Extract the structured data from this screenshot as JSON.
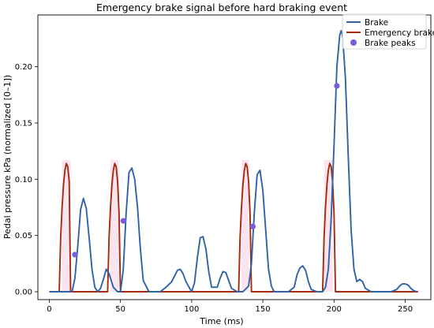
{
  "chart_data": {
    "type": "line",
    "title": "Emergency brake signal before hard braking event",
    "xlabel": "Time (ms)",
    "ylabel": "Pedal pressure kPa (normalized [0–1])",
    "xlim": [
      -8,
      268
    ],
    "ylim": [
      -0.007,
      0.246
    ],
    "xticks": [
      0,
      50,
      100,
      150,
      200,
      250
    ],
    "yticks": [
      0.0,
      0.05,
      0.1,
      0.15,
      0.2
    ],
    "ytick_labels": [
      "0.00",
      "0.05",
      "0.10",
      "0.15",
      "0.20"
    ],
    "grid": false,
    "legend_position": "top-right",
    "series": [
      {
        "name": "Brake",
        "color": "#2f62a8",
        "x": [
          0,
          16,
          18,
          20,
          22,
          24,
          26,
          28,
          30,
          32,
          34,
          36,
          38,
          40,
          42,
          45,
          48,
          50,
          52,
          54,
          56,
          58,
          60,
          62,
          64,
          66,
          70,
          74,
          78,
          82,
          86,
          88,
          90,
          92,
          94,
          96,
          100,
          102,
          104,
          106,
          108,
          110,
          112,
          114,
          118,
          120,
          122,
          124,
          126,
          128,
          132,
          136,
          140,
          142,
          144,
          146,
          148,
          150,
          152,
          154,
          156,
          158,
          160,
          168,
          172,
          174,
          176,
          178,
          180,
          182,
          184,
          188,
          192,
          194,
          196,
          198,
          200,
          202,
          204,
          205,
          206,
          208,
          210,
          212,
          214,
          216,
          218,
          220,
          222,
          226,
          230,
          240,
          244,
          246,
          248,
          250,
          252,
          254,
          256,
          258
        ],
        "y": [
          0,
          0,
          0.012,
          0.04,
          0.073,
          0.083,
          0.074,
          0.048,
          0.02,
          0.004,
          0,
          0.003,
          0.011,
          0.02,
          0.016,
          0.004,
          0,
          0,
          0.02,
          0.07,
          0.106,
          0.11,
          0.1,
          0.075,
          0.038,
          0.01,
          0,
          0,
          0,
          0.004,
          0.009,
          0.014,
          0.019,
          0.02,
          0.016,
          0.009,
          0,
          0.008,
          0.03,
          0.048,
          0.049,
          0.038,
          0.018,
          0.004,
          0.004,
          0.012,
          0.018,
          0.017,
          0.01,
          0.003,
          0,
          0,
          0.005,
          0.025,
          0.07,
          0.104,
          0.108,
          0.09,
          0.055,
          0.02,
          0.005,
          0,
          0,
          0,
          0.004,
          0.015,
          0.021,
          0.023,
          0.019,
          0.009,
          0.002,
          0,
          0,
          0.004,
          0.02,
          0.065,
          0.13,
          0.2,
          0.228,
          0.232,
          0.228,
          0.19,
          0.12,
          0.055,
          0.02,
          0.009,
          0.011,
          0.009,
          0.003,
          0,
          0,
          0,
          0.002,
          0.005,
          0.007,
          0.007,
          0.006,
          0.003,
          0.001,
          0
        ]
      },
      {
        "name": "Emergency brake",
        "color": "#a52a0e",
        "x": [
          0,
          7,
          8,
          9,
          10,
          11,
          12,
          13,
          14,
          15,
          16,
          41,
          42,
          43,
          44,
          45,
          46,
          47,
          48,
          49,
          50,
          51,
          133,
          134,
          135,
          136,
          137,
          138,
          139,
          140,
          141,
          142,
          192,
          193,
          194,
          195,
          196,
          197,
          198,
          199,
          200,
          201,
          259
        ],
        "y": [
          0,
          0,
          0.048,
          0.075,
          0.095,
          0.108,
          0.114,
          0.111,
          0.098,
          0,
          0,
          0,
          0.048,
          0.075,
          0.095,
          0.108,
          0.114,
          0.111,
          0.098,
          0.07,
          0,
          0,
          0,
          0.048,
          0.075,
          0.095,
          0.108,
          0.114,
          0.111,
          0.098,
          0.07,
          0,
          0,
          0.048,
          0.075,
          0.095,
          0.108,
          0.114,
          0.111,
          0.098,
          0.07,
          0,
          0
        ]
      }
    ],
    "peaks": {
      "name": "Brake peaks",
      "color": "#7b5cdb",
      "x": [
        18,
        52,
        143,
        202
      ],
      "y": [
        0.033,
        0.063,
        0.058,
        0.183
      ]
    },
    "highlight_spans": {
      "color": "#f3c4dc",
      "ranges": [
        [
          9,
          15
        ],
        [
          43,
          49
        ],
        [
          135,
          140
        ],
        [
          193,
          199
        ]
      ]
    }
  }
}
